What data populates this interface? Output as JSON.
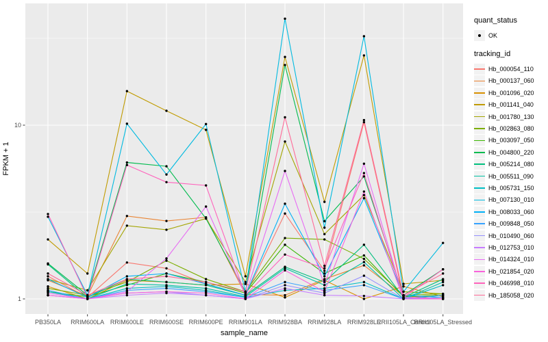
{
  "figure": {
    "panel_bg": "#EBEBEB",
    "grid_color": "#FFFFFF",
    "tick_mark_color": "#333333",
    "tick_label_color": "#4D4D4D",
    "point_color": "#000000"
  },
  "chart_data": {
    "type": "line",
    "title": "",
    "xlabel": "sample_name",
    "ylabel": "FPKM + 1",
    "y_scale": "log10",
    "y_ticks": [
      1,
      10
    ],
    "y_minor_breaks": [
      3.1623,
      31.623
    ],
    "ylim": [
      0.85,
      50
    ],
    "grid": true,
    "legend_position": "right",
    "legend": {
      "quant_status_title": "quant_status",
      "ok_label": "OK",
      "tracking_id_title": "tracking_id"
    },
    "categories": [
      "PB350LA",
      "RRIM600LA",
      "RRIM600LE",
      "RRIM600SE",
      "RRIM600PE",
      "RRIM901LA",
      "RRIM928BA",
      "RRIM928LA",
      "RRIM928LE",
      "RRII105LA_Control",
      "RRII105LA_Stressed"
    ],
    "series": [
      {
        "name": "Hb_000054_110",
        "color": "#F8766D",
        "values": [
          1.35,
          1.02,
          1.62,
          1.5,
          1.22,
          1.05,
          3.1,
          1.45,
          10.4,
          1.02,
          1.05
        ]
      },
      {
        "name": "Hb_000137_060",
        "color": "#EA8331",
        "values": [
          1.28,
          1.04,
          3.0,
          2.81,
          2.95,
          1.06,
          1.05,
          1.3,
          1.56,
          1.04,
          1.0
        ]
      },
      {
        "name": "Hb_001096_020",
        "color": "#D89000",
        "values": [
          1.18,
          1.0,
          1.28,
          1.25,
          1.2,
          1.22,
          1.02,
          1.28,
          1.0,
          1.18,
          1.03
        ]
      },
      {
        "name": "Hb_001141_040",
        "color": "#C09B00",
        "values": [
          2.2,
          1.4,
          15.7,
          12.1,
          9.4,
          1.35,
          24.7,
          3.62,
          25.2,
          1.22,
          1.28
        ]
      },
      {
        "name": "Hb_001780_130",
        "color": "#A3A500",
        "values": [
          1.3,
          1.12,
          2.64,
          2.5,
          2.9,
          1.25,
          8.05,
          2.36,
          3.96,
          1.1,
          1.07
        ]
      },
      {
        "name": "Hb_002863_080",
        "color": "#7CAE00",
        "values": [
          1.15,
          1.05,
          1.25,
          1.66,
          1.3,
          1.1,
          2.24,
          2.2,
          1.7,
          1.05,
          1.07
        ]
      },
      {
        "name": "Hb_003097_050",
        "color": "#39B600",
        "values": [
          1.1,
          1.03,
          1.2,
          1.4,
          1.25,
          1.08,
          2.05,
          1.4,
          1.78,
          1.03,
          1.05
        ]
      },
      {
        "name": "Hb_004800_220",
        "color": "#00BB4E",
        "values": [
          1.6,
          1.05,
          6.1,
          5.8,
          2.9,
          1.1,
          22.2,
          2.8,
          5.07,
          1.05,
          1.48
        ]
      },
      {
        "name": "Hb_005214_080",
        "color": "#00BF7D",
        "values": [
          1.58,
          1.02,
          1.3,
          1.25,
          1.2,
          1.05,
          1.53,
          1.25,
          2.05,
          1.02,
          1.3
        ]
      },
      {
        "name": "Hb_005511_090",
        "color": "#00C1A3",
        "values": [
          1.12,
          1.0,
          1.22,
          1.2,
          1.15,
          1.03,
          1.5,
          1.2,
          1.63,
          1.0,
          1.25
        ]
      },
      {
        "name": "Hb_005731_150",
        "color": "#00BFC4",
        "values": [
          1.1,
          1.0,
          1.15,
          1.18,
          1.12,
          1.02,
          1.12,
          1.15,
          1.25,
          1.0,
          1.2
        ]
      },
      {
        "name": "Hb_007130_010",
        "color": "#00BAE0",
        "values": [
          2.97,
          1.05,
          10.2,
          5.2,
          10.15,
          1.1,
          41.0,
          2.57,
          32.5,
          1.1,
          2.1
        ]
      },
      {
        "name": "Hb_008033_060",
        "color": "#00B0F6",
        "values": [
          1.3,
          1.02,
          1.35,
          1.4,
          1.22,
          1.05,
          3.53,
          1.35,
          3.8,
          1.05,
          1.02
        ]
      },
      {
        "name": "Hb_009848_050",
        "color": "#35A2FF",
        "values": [
          1.12,
          1.0,
          1.12,
          1.15,
          1.1,
          1.02,
          1.25,
          1.12,
          1.2,
          1.0,
          1.05
        ]
      },
      {
        "name": "Hb_010490_060",
        "color": "#9590FF",
        "values": [
          1.05,
          1.0,
          1.08,
          1.1,
          1.05,
          1.0,
          1.2,
          1.08,
          1.36,
          1.0,
          1.02
        ]
      },
      {
        "name": "Hb_012753_010",
        "color": "#C77CFF",
        "values": [
          1.05,
          1.0,
          1.05,
          1.08,
          1.05,
          1.0,
          1.15,
          1.05,
          1.04,
          1.0,
          1.0
        ]
      },
      {
        "name": "Hb_014324_010",
        "color": "#E76BF3",
        "values": [
          1.08,
          1.0,
          1.1,
          1.71,
          3.4,
          1.05,
          5.45,
          1.2,
          6.0,
          1.02,
          1.0
        ]
      },
      {
        "name": "Hb_021854_020",
        "color": "#FA62DB",
        "values": [
          1.05,
          1.0,
          1.08,
          1.1,
          1.08,
          1.0,
          1.46,
          1.1,
          4.15,
          1.0,
          1.0
        ]
      },
      {
        "name": "Hb_046998_010",
        "color": "#FF62BC",
        "values": [
          3.08,
          1.02,
          5.9,
          4.7,
          4.5,
          1.05,
          1.8,
          1.5,
          5.3,
          1.02,
          1.48
        ]
      },
      {
        "name": "Hb_185058_020",
        "color": "#FF6A98",
        "values": [
          1.4,
          1.05,
          1.3,
          1.35,
          1.25,
          1.1,
          11.1,
          1.55,
          10.7,
          1.05,
          1.4
        ]
      }
    ]
  }
}
